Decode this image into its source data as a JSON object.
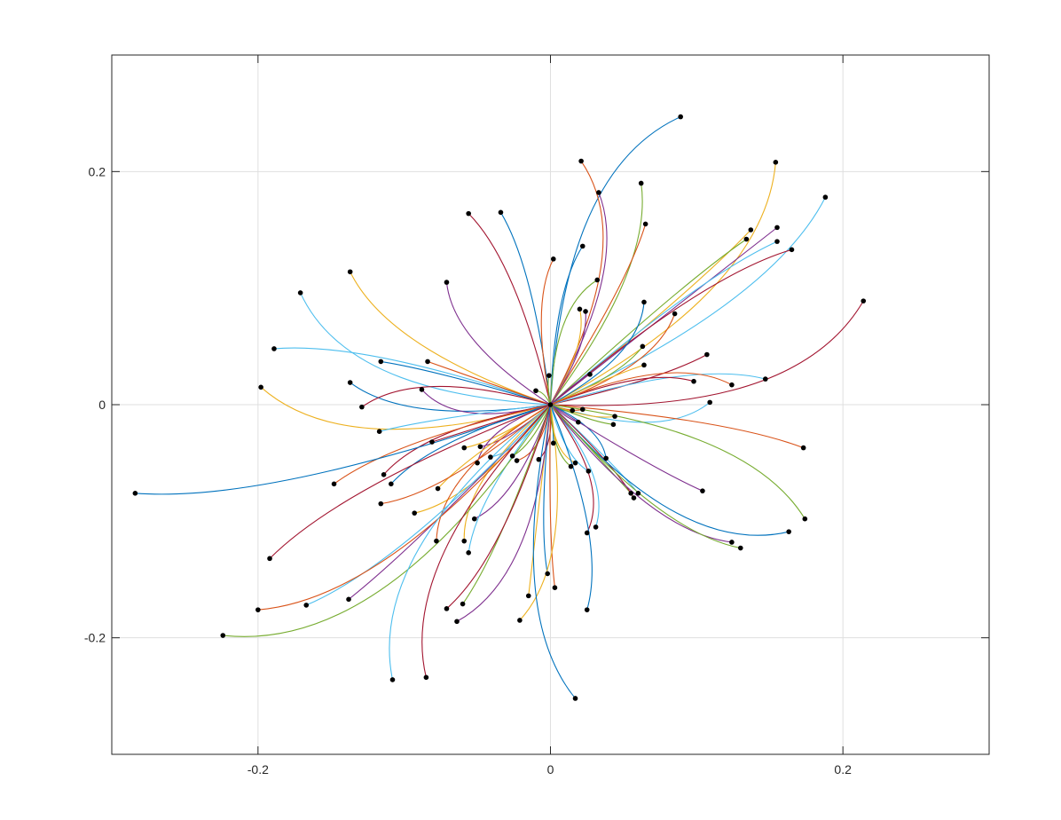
{
  "chart_data": {
    "type": "line",
    "title": "",
    "xlabel": "",
    "ylabel": "",
    "xlim": [
      -0.3,
      0.3
    ],
    "ylim": [
      -0.3,
      0.3
    ],
    "xticks": [
      -0.2,
      0,
      0.2
    ],
    "yticks": [
      -0.2,
      0,
      0.2
    ],
    "xtick_labels": [
      "-0.2",
      "0",
      "0.2"
    ],
    "ytick_labels": [
      "-0.2",
      "0",
      "0.2"
    ],
    "grid": true,
    "legend": "none",
    "colors": [
      "#0072BD",
      "#D95319",
      "#EDB120",
      "#7E2F8E",
      "#77AC30",
      "#4DBEEE",
      "#A2142F"
    ],
    "center": [
      0,
      0
    ],
    "endpoint_marker_color": "#000000",
    "series_note": "Curved trajectories connect the origin to each marked endpoint",
    "endpoints": [
      [
        0.089,
        0.247
      ],
      [
        0.021,
        0.209
      ],
      [
        0.154,
        0.208
      ],
      [
        0.033,
        0.182
      ],
      [
        0.062,
        0.19
      ],
      [
        0.188,
        0.178
      ],
      [
        -0.056,
        0.164
      ],
      [
        -0.034,
        0.165
      ],
      [
        0.065,
        0.155
      ],
      [
        0.137,
        0.15
      ],
      [
        0.155,
        0.152
      ],
      [
        0.134,
        0.142
      ],
      [
        0.155,
        0.14
      ],
      [
        0.165,
        0.133
      ],
      [
        0.022,
        0.136
      ],
      [
        0.002,
        0.125
      ],
      [
        -0.137,
        0.114
      ],
      [
        -0.071,
        0.105
      ],
      [
        0.032,
        0.107
      ],
      [
        -0.171,
        0.096
      ],
      [
        0.214,
        0.089
      ],
      [
        0.064,
        0.088
      ],
      [
        0.085,
        0.078
      ],
      [
        0.02,
        0.082
      ],
      [
        0.024,
        0.08
      ],
      [
        0.063,
        0.05
      ],
      [
        -0.189,
        0.048
      ],
      [
        0.107,
        0.043
      ],
      [
        -0.116,
        0.037
      ],
      [
        -0.084,
        0.037
      ],
      [
        0.064,
        0.034
      ],
      [
        0.027,
        0.026
      ],
      [
        -0.001,
        0.025
      ],
      [
        0.147,
        0.022
      ],
      [
        0.098,
        0.02
      ],
      [
        -0.137,
        0.019
      ],
      [
        0.124,
        0.017
      ],
      [
        -0.198,
        0.015
      ],
      [
        -0.088,
        0.013
      ],
      [
        -0.01,
        0.012
      ],
      [
        0.109,
        0.002
      ],
      [
        -0.129,
        -0.002
      ],
      [
        0.015,
        -0.005
      ],
      [
        0.022,
        -0.004
      ],
      [
        0.044,
        -0.01
      ],
      [
        0.019,
        -0.015
      ],
      [
        0.043,
        -0.017
      ],
      [
        -0.117,
        -0.023
      ],
      [
        -0.081,
        -0.032
      ],
      [
        0.002,
        -0.033
      ],
      [
        0.173,
        -0.037
      ],
      [
        -0.059,
        -0.037
      ],
      [
        -0.048,
        -0.036
      ],
      [
        -0.026,
        -0.044
      ],
      [
        -0.041,
        -0.045
      ],
      [
        -0.008,
        -0.047
      ],
      [
        0.038,
        -0.046
      ],
      [
        -0.023,
        -0.048
      ],
      [
        0.017,
        -0.05
      ],
      [
        -0.05,
        -0.05
      ],
      [
        0.014,
        -0.053
      ],
      [
        0.026,
        -0.057
      ],
      [
        -0.114,
        -0.06
      ],
      [
        -0.109,
        -0.068
      ],
      [
        -0.148,
        -0.068
      ],
      [
        -0.077,
        -0.072
      ],
      [
        0.104,
        -0.074
      ],
      [
        0.055,
        -0.076
      ],
      [
        0.06,
        -0.076
      ],
      [
        0.057,
        -0.08
      ],
      [
        -0.284,
        -0.076
      ],
      [
        -0.116,
        -0.085
      ],
      [
        -0.093,
        -0.093
      ],
      [
        -0.052,
        -0.098
      ],
      [
        0.174,
        -0.098
      ],
      [
        0.031,
        -0.105
      ],
      [
        0.025,
        -0.11
      ],
      [
        0.163,
        -0.109
      ],
      [
        -0.078,
        -0.117
      ],
      [
        -0.059,
        -0.117
      ],
      [
        0.124,
        -0.118
      ],
      [
        0.13,
        -0.123
      ],
      [
        -0.056,
        -0.127
      ],
      [
        -0.192,
        -0.132
      ],
      [
        -0.002,
        -0.145
      ],
      [
        0.003,
        -0.157
      ],
      [
        -0.015,
        -0.164
      ],
      [
        -0.138,
        -0.167
      ],
      [
        -0.06,
        -0.171
      ],
      [
        -0.167,
        -0.172
      ],
      [
        -0.071,
        -0.175
      ],
      [
        0.025,
        -0.176
      ],
      [
        -0.2,
        -0.176
      ],
      [
        -0.021,
        -0.185
      ],
      [
        -0.064,
        -0.186
      ],
      [
        -0.224,
        -0.198
      ],
      [
        -0.108,
        -0.236
      ],
      [
        -0.085,
        -0.234
      ],
      [
        0.017,
        -0.252
      ]
    ]
  }
}
